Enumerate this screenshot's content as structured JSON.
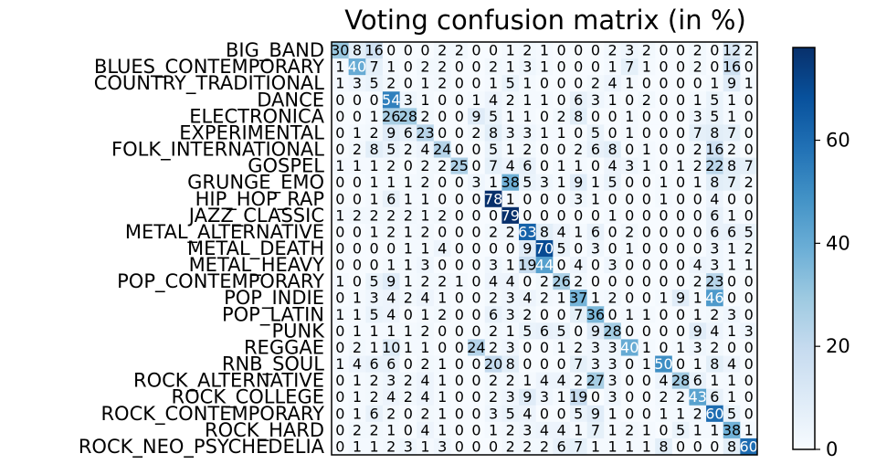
{
  "chart_data": {
    "type": "heatmap",
    "title": "Voting confusion matrix (in %)",
    "labels": [
      "BIG_BAND",
      "BLUES_CONTEMPORARY",
      "COUNTRY_TRADITIONAL",
      "DANCE",
      "ELECTRONICA",
      "EXPERIMENTAL",
      "FOLK_INTERNATIONAL",
      "GOSPEL",
      "GRUNGE_EMO",
      "HIP_HOP_RAP",
      "JAZZ_CLASSIC",
      "METAL_ALTERNATIVE",
      "METAL_DEATH",
      "METAL_HEAVY",
      "POP_CONTEMPORARY",
      "POP_INDIE",
      "POP_LATIN",
      "PUNK",
      "REGGAE",
      "RNB_SOUL",
      "ROCK_ALTERNATIVE",
      "ROCK_COLLEGE",
      "ROCK_CONTEMPORARY",
      "ROCK_HARD",
      "ROCK_NEO_PSYCHEDELIA"
    ],
    "matrix": [
      [
        30,
        8,
        16,
        0,
        0,
        0,
        2,
        2,
        0,
        0,
        1,
        2,
        1,
        0,
        0,
        0,
        2,
        3,
        2,
        0,
        0,
        2,
        0,
        12,
        2
      ],
      [
        1,
        40,
        7,
        1,
        0,
        2,
        2,
        0,
        0,
        2,
        1,
        3,
        1,
        0,
        0,
        0,
        1,
        7,
        1,
        0,
        0,
        2,
        0,
        16,
        0
      ],
      [
        1,
        3,
        5,
        2,
        0,
        1,
        2,
        0,
        0,
        1,
        5,
        1,
        0,
        0,
        0,
        2,
        4,
        1,
        0,
        0,
        0,
        0,
        1,
        9,
        1
      ],
      [
        0,
        0,
        0,
        54,
        3,
        1,
        0,
        0,
        1,
        4,
        2,
        1,
        1,
        0,
        6,
        3,
        1,
        0,
        2,
        0,
        0,
        1,
        5,
        1,
        0
      ],
      [
        0,
        0,
        1,
        26,
        28,
        2,
        0,
        0,
        9,
        5,
        1,
        1,
        0,
        2,
        8,
        0,
        0,
        1,
        0,
        0,
        0,
        3,
        5,
        1,
        0
      ],
      [
        0,
        1,
        2,
        9,
        6,
        23,
        0,
        0,
        2,
        8,
        3,
        3,
        1,
        1,
        0,
        5,
        0,
        1,
        0,
        0,
        0,
        7,
        8,
        7,
        0
      ],
      [
        0,
        2,
        8,
        5,
        2,
        4,
        24,
        0,
        0,
        5,
        1,
        2,
        0,
        0,
        2,
        6,
        8,
        0,
        1,
        0,
        0,
        2,
        16,
        2,
        0
      ],
      [
        1,
        1,
        1,
        2,
        0,
        2,
        2,
        25,
        0,
        7,
        4,
        6,
        0,
        1,
        1,
        0,
        4,
        3,
        1,
        0,
        1,
        2,
        22,
        8,
        7
      ],
      [
        0,
        0,
        1,
        1,
        1,
        2,
        0,
        0,
        3,
        1,
        38,
        5,
        3,
        1,
        9,
        1,
        5,
        0,
        0,
        1,
        0,
        1,
        8,
        7,
        2
      ],
      [
        0,
        0,
        1,
        6,
        1,
        1,
        0,
        0,
        0,
        78,
        1,
        0,
        0,
        0,
        3,
        1,
        0,
        0,
        0,
        1,
        0,
        0,
        4,
        0,
        0
      ],
      [
        1,
        2,
        2,
        2,
        2,
        1,
        2,
        0,
        0,
        0,
        79,
        0,
        0,
        0,
        0,
        0,
        1,
        0,
        0,
        0,
        0,
        0,
        6,
        1,
        0
      ],
      [
        0,
        0,
        1,
        2,
        1,
        2,
        0,
        0,
        0,
        2,
        2,
        63,
        8,
        4,
        1,
        6,
        0,
        2,
        0,
        0,
        0,
        0,
        6,
        6,
        5
      ],
      [
        0,
        0,
        0,
        0,
        1,
        1,
        4,
        0,
        0,
        0,
        0,
        9,
        70,
        5,
        0,
        3,
        0,
        1,
        0,
        0,
        0,
        0,
        3,
        1,
        2
      ],
      [
        0,
        0,
        0,
        1,
        1,
        3,
        0,
        0,
        0,
        3,
        1,
        19,
        44,
        0,
        4,
        0,
        3,
        0,
        0,
        0,
        0,
        4,
        3,
        1,
        1
      ],
      [
        1,
        0,
        5,
        9,
        1,
        2,
        2,
        1,
        0,
        4,
        4,
        0,
        2,
        26,
        2,
        0,
        0,
        0,
        0,
        0,
        0,
        2,
        23,
        0,
        0
      ],
      [
        0,
        1,
        3,
        4,
        2,
        4,
        1,
        0,
        0,
        2,
        3,
        4,
        2,
        1,
        37,
        1,
        2,
        0,
        0,
        1,
        9,
        1,
        46,
        0,
        0
      ],
      [
        1,
        1,
        5,
        4,
        0,
        1,
        2,
        0,
        0,
        6,
        3,
        2,
        0,
        0,
        7,
        36,
        0,
        1,
        1,
        0,
        0,
        1,
        2,
        3,
        0
      ],
      [
        0,
        1,
        1,
        1,
        1,
        2,
        0,
        0,
        0,
        2,
        1,
        5,
        6,
        5,
        0,
        9,
        28,
        0,
        0,
        0,
        0,
        9,
        4,
        1,
        3
      ],
      [
        0,
        2,
        1,
        10,
        1,
        1,
        0,
        0,
        24,
        2,
        3,
        0,
        0,
        1,
        2,
        3,
        3,
        40,
        1,
        0,
        1,
        3,
        2,
        0,
        0
      ],
      [
        1,
        4,
        6,
        6,
        0,
        2,
        1,
        0,
        0,
        20,
        8,
        0,
        0,
        0,
        7,
        3,
        3,
        0,
        1,
        50,
        0,
        1,
        8,
        4,
        0
      ],
      [
        0,
        1,
        2,
        3,
        2,
        4,
        1,
        0,
        0,
        2,
        2,
        1,
        4,
        4,
        2,
        27,
        3,
        0,
        0,
        4,
        28,
        6,
        1,
        1,
        0
      ],
      [
        0,
        1,
        2,
        4,
        2,
        4,
        1,
        0,
        0,
        2,
        3,
        9,
        3,
        1,
        19,
        0,
        3,
        0,
        0,
        2,
        2,
        43,
        6,
        1,
        0
      ],
      [
        0,
        1,
        6,
        2,
        0,
        2,
        1,
        0,
        0,
        3,
        5,
        4,
        0,
        0,
        5,
        9,
        1,
        0,
        0,
        1,
        1,
        2,
        60,
        5,
        0
      ],
      [
        0,
        2,
        2,
        1,
        0,
        4,
        1,
        0,
        0,
        1,
        2,
        3,
        4,
        4,
        1,
        7,
        1,
        2,
        1,
        0,
        5,
        1,
        1,
        38,
        1
      ],
      [
        0,
        1,
        1,
        2,
        3,
        1,
        3,
        0,
        0,
        0,
        2,
        2,
        2,
        6,
        7,
        1,
        1,
        1,
        1,
        8,
        0,
        0,
        0,
        8,
        60
      ]
    ],
    "colorbar": {
      "min": 0,
      "max": 78,
      "ticks": [
        0,
        20,
        40,
        60
      ]
    },
    "colormap": [
      "#f7fbff",
      "#deebf7",
      "#c6dbef",
      "#9ecae1",
      "#6baed6",
      "#4292c6",
      "#2171b5",
      "#08519c",
      "#08306b"
    ],
    "grid": false,
    "legend": "colorbar-right"
  }
}
